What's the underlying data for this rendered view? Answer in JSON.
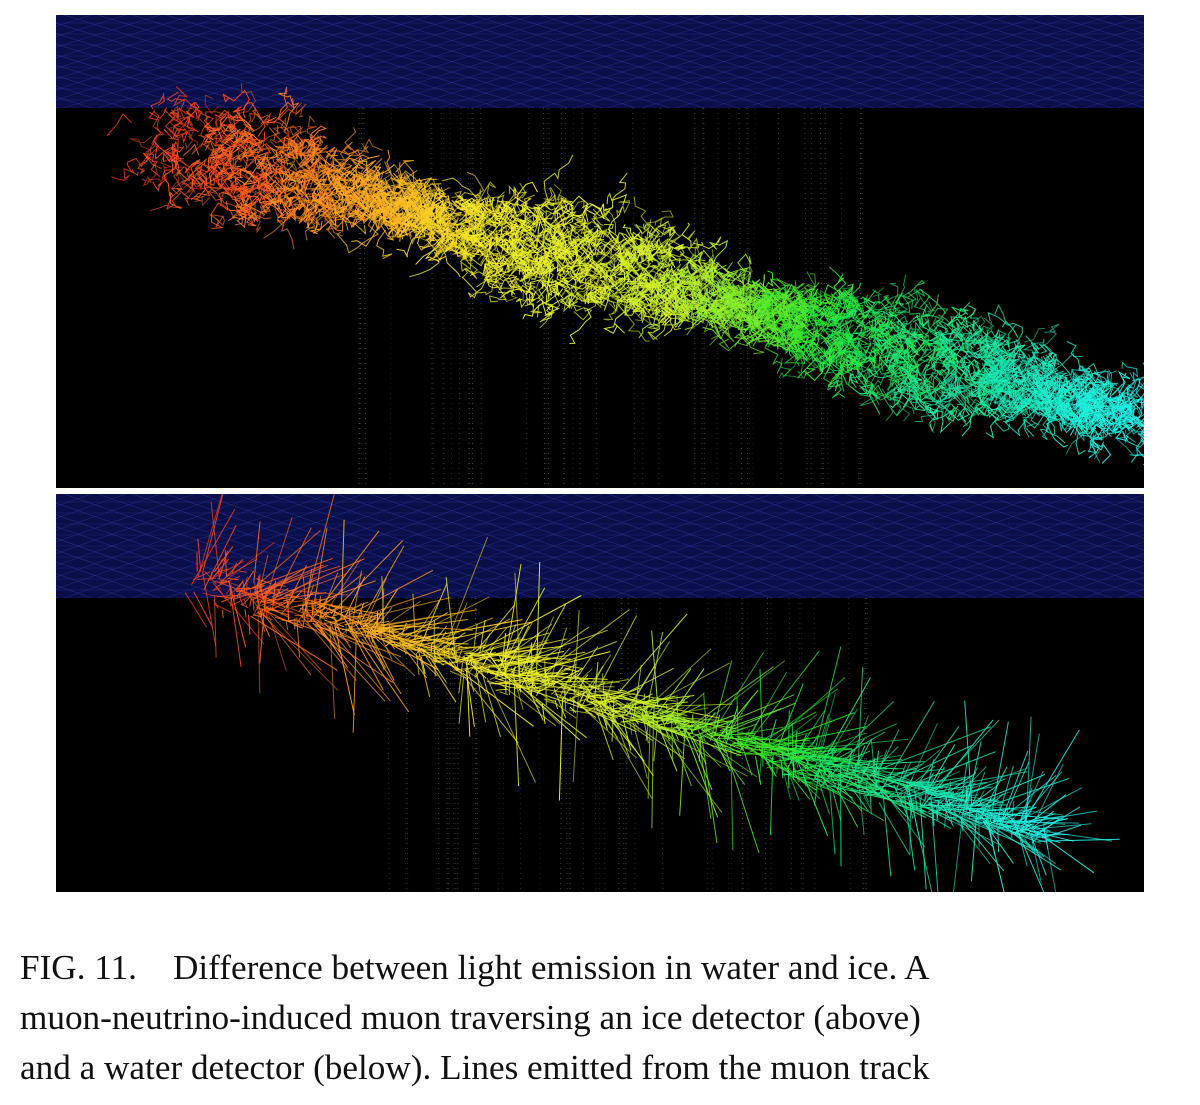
{
  "figure": {
    "panels": [
      {
        "id": "ice",
        "medium": "ice",
        "colors": {
          "background": "#000000",
          "grid_band": "#0a0f4a",
          "grid_line": "#3845b4",
          "string_dots": "#6c6c6c"
        },
        "track_gradient": [
          "#ff3a1e",
          "#ffa020",
          "#f4f02a",
          "#d4f22a",
          "#28e62e",
          "#18e6ae",
          "#22f4f2"
        ]
      },
      {
        "id": "water",
        "medium": "water",
        "colors": {
          "background": "#000000",
          "grid_band": "#0a0f4a",
          "grid_line": "#3845b4",
          "string_dots": "#6c6c6c"
        },
        "track_gradient": [
          "#ff3a1e",
          "#ffa020",
          "#f4f02a",
          "#d4f22a",
          "#28e62e",
          "#18e6ae",
          "#22f4f2"
        ]
      }
    ]
  },
  "caption": {
    "label": "FIG. 11.",
    "line1": "Difference between light emission in water and ice. A",
    "line2": "muon-neutrino-induced muon traversing an ice detector (above)",
    "line3": "and a water detector (below). Lines emitted from the muon track"
  }
}
